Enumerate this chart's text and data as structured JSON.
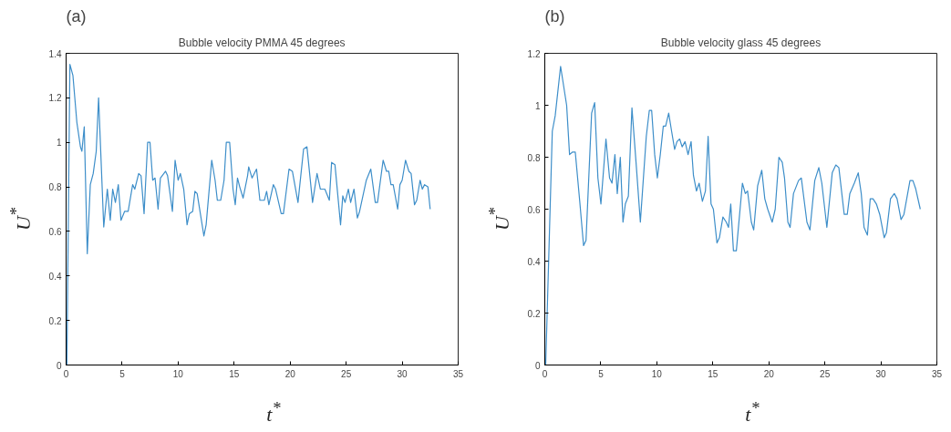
{
  "chart_data": [
    {
      "type": "line",
      "title": "Bubble velocity PMMA 45 degrees",
      "xlabel": "t$^{*}$",
      "ylabel": "U$^{*}$",
      "annotations": [
        "(a)"
      ],
      "xlim": [
        0,
        35
      ],
      "xticks": [
        0,
        5,
        10,
        15,
        20,
        25,
        30,
        35
      ],
      "ylim": [
        0,
        1.4
      ],
      "yticks": [
        0,
        0.2,
        0.4,
        0.6,
        0.8,
        1,
        1.2,
        1.4
      ],
      "grid": false,
      "series": [
        {
          "color": "#3d8ec9",
          "x": [
            0.07,
            0.34,
            0.61,
            0.96,
            1.28,
            1.41,
            1.62,
            1.89,
            2.16,
            2.42,
            2.69,
            2.9,
            3.36,
            3.68,
            3.94,
            4.16,
            4.4,
            4.66,
            4.9,
            5.22,
            5.54,
            5.94,
            6.13,
            6.48,
            6.69,
            6.96,
            7.28,
            7.49,
            7.73,
            7.94,
            8.21,
            8.42,
            8.88,
            9.06,
            9.49,
            9.73,
            10.0,
            10.2,
            10.5,
            10.8,
            11.0,
            11.3,
            11.5,
            11.7,
            12.3,
            12.5,
            13.0,
            13.3,
            13.5,
            13.8,
            14.1,
            14.3,
            14.6,
            14.9,
            15.1,
            15.3,
            15.5,
            15.8,
            16.2,
            16.3,
            16.6,
            17.0,
            17.3,
            17.7,
            17.9,
            18.1,
            18.5,
            18.7,
            19.2,
            19.4,
            19.9,
            20.2,
            20.7,
            21.2,
            21.5,
            22.0,
            22.4,
            22.7,
            23.1,
            23.5,
            23.7,
            24.0,
            24.5,
            24.7,
            24.9,
            25.2,
            25.4,
            25.7,
            26.0,
            26.2,
            26.8,
            27.2,
            27.6,
            27.8,
            28.3,
            28.6,
            28.8,
            29.0,
            29.2,
            29.6,
            29.8,
            30.0,
            30.3,
            30.6,
            30.8,
            31.1,
            31.3,
            31.6,
            31.8,
            32.0,
            32.3,
            32.5
          ],
          "values": [
            0,
            1.35,
            1.3,
            1.09,
            0.98,
            0.96,
            1.07,
            0.5,
            0.81,
            0.86,
            0.96,
            1.2,
            0.62,
            0.79,
            0.65,
            0.79,
            0.73,
            0.81,
            0.65,
            0.69,
            0.69,
            0.81,
            0.79,
            0.86,
            0.85,
            0.68,
            1.0,
            1.0,
            0.83,
            0.84,
            0.7,
            0.84,
            0.87,
            0.85,
            0.69,
            0.92,
            0.83,
            0.86,
            0.79,
            0.63,
            0.68,
            0.69,
            0.78,
            0.77,
            0.58,
            0.63,
            0.92,
            0.83,
            0.74,
            0.74,
            0.83,
            1.0,
            1.0,
            0.79,
            0.72,
            0.84,
            0.8,
            0.75,
            0.85,
            0.89,
            0.84,
            0.88,
            0.74,
            0.74,
            0.78,
            0.72,
            0.81,
            0.79,
            0.68,
            0.68,
            0.88,
            0.87,
            0.73,
            0.97,
            0.98,
            0.73,
            0.86,
            0.79,
            0.79,
            0.74,
            0.91,
            0.9,
            0.63,
            0.76,
            0.73,
            0.79,
            0.73,
            0.79,
            0.66,
            0.69,
            0.83,
            0.88,
            0.73,
            0.73,
            0.92,
            0.87,
            0.87,
            0.81,
            0.81,
            0.7,
            0.81,
            0.83,
            0.92,
            0.87,
            0.86,
            0.72,
            0.74,
            0.83,
            0.79,
            0.81,
            0.8,
            0.7
          ]
        }
      ]
    },
    {
      "type": "line",
      "title": "Bubble velocity glass 45 degrees",
      "xlabel": "t$^{*}$",
      "ylabel": "U$^{*}$",
      "annotations": [
        "(b)"
      ],
      "xlim": [
        0,
        35
      ],
      "xticks": [
        0,
        5,
        10,
        15,
        20,
        25,
        30,
        35
      ],
      "ylim": [
        0,
        1.2
      ],
      "yticks": [
        0,
        0.2,
        0.4,
        0.6,
        0.8,
        1,
        1.2
      ],
      "grid": false,
      "series": [
        {
          "color": "#3d8ec9",
          "x": [
            0.08,
            0.67,
            0.93,
            1.41,
            1.95,
            2.21,
            2.48,
            2.72,
            3.12,
            3.46,
            3.68,
            4.18,
            4.45,
            4.74,
            5.01,
            5.46,
            5.78,
            6.0,
            6.26,
            6.47,
            6.74,
            6.98,
            7.19,
            7.46,
            7.78,
            8.18,
            8.53,
            9.06,
            9.33,
            9.54,
            9.81,
            10.05,
            10.31,
            10.58,
            10.79,
            11.06,
            11.32,
            11.59,
            11.8,
            12.04,
            12.26,
            12.52,
            12.79,
            13.06,
            13.27,
            13.54,
            13.78,
            14.07,
            14.34,
            14.58,
            14.84,
            15.05,
            15.37,
            15.59,
            15.9,
            16.2,
            16.4,
            16.6,
            16.84,
            17.1,
            17.64,
            17.9,
            18.1,
            18.44,
            18.65,
            19.0,
            19.37,
            19.64,
            19.9,
            20.3,
            20.57,
            20.9,
            21.2,
            21.4,
            21.7,
            21.9,
            22.2,
            22.65,
            22.9,
            23.4,
            23.67,
            24.1,
            24.46,
            24.73,
            25.18,
            25.66,
            25.98,
            26.25,
            26.73,
            27.0,
            27.23,
            27.63,
            27.98,
            28.25,
            28.5,
            28.8,
            29.05,
            29.3,
            29.6,
            29.9,
            30.3,
            30.5,
            30.86,
            31.2,
            31.45,
            31.8,
            32.06,
            32.6,
            32.86,
            33.1,
            33.52
          ],
          "values": [
            0,
            0.9,
            0.96,
            1.15,
            1.0,
            0.81,
            0.82,
            0.82,
            0.63,
            0.46,
            0.48,
            0.97,
            1.01,
            0.72,
            0.62,
            0.87,
            0.72,
            0.7,
            0.81,
            0.66,
            0.8,
            0.55,
            0.62,
            0.65,
            0.99,
            0.76,
            0.55,
            0.88,
            0.98,
            0.98,
            0.81,
            0.72,
            0.81,
            0.92,
            0.92,
            0.97,
            0.9,
            0.83,
            0.86,
            0.87,
            0.84,
            0.86,
            0.81,
            0.86,
            0.73,
            0.67,
            0.7,
            0.63,
            0.67,
            0.88,
            0.62,
            0.6,
            0.47,
            0.49,
            0.57,
            0.55,
            0.53,
            0.62,
            0.44,
            0.44,
            0.7,
            0.66,
            0.67,
            0.55,
            0.52,
            0.69,
            0.75,
            0.64,
            0.6,
            0.55,
            0.6,
            0.8,
            0.78,
            0.72,
            0.55,
            0.53,
            0.66,
            0.71,
            0.72,
            0.55,
            0.52,
            0.71,
            0.76,
            0.7,
            0.53,
            0.74,
            0.77,
            0.76,
            0.58,
            0.58,
            0.66,
            0.7,
            0.74,
            0.66,
            0.53,
            0.5,
            0.64,
            0.64,
            0.62,
            0.58,
            0.49,
            0.51,
            0.64,
            0.66,
            0.64,
            0.56,
            0.58,
            0.71,
            0.71,
            0.68,
            0.6
          ]
        }
      ]
    }
  ]
}
